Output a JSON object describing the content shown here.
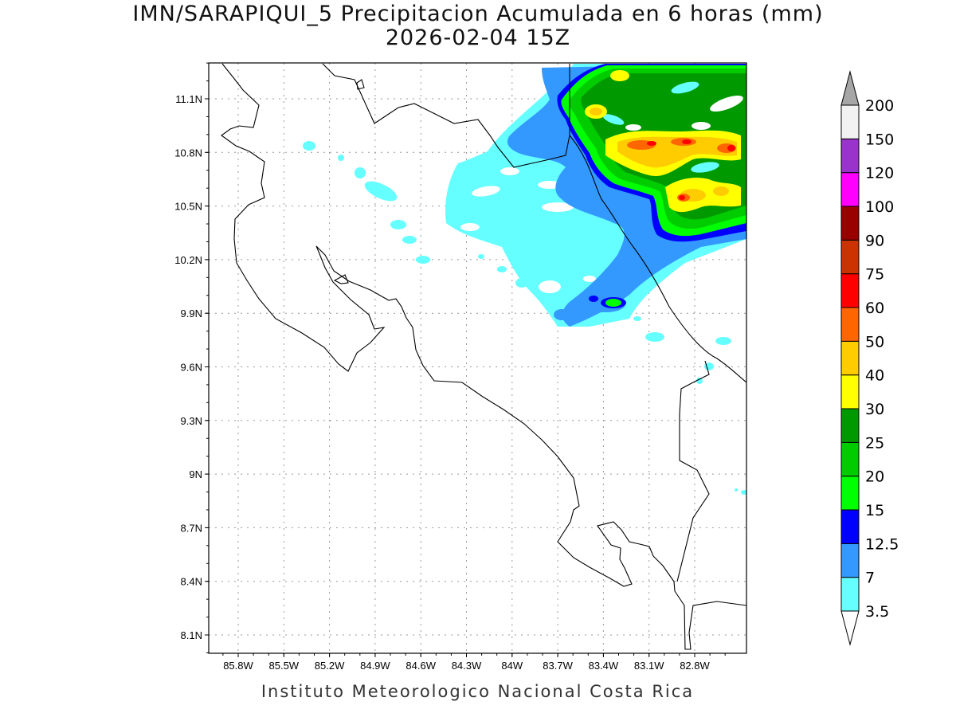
{
  "title": {
    "line1": "IMN/SARAPIQUI_5 Precipitacion Acumulada en 6 horas (mm)",
    "line2": "2026-02-04 15Z"
  },
  "credit": "Instituto Meteorologico Nacional Costa Rica",
  "map": {
    "lon_range": [
      -86.0,
      -82.6
    ],
    "lat_range": [
      8.0,
      11.3
    ],
    "lat_ticks": [
      "11.1N",
      "10.8N",
      "10.5N",
      "10.2N",
      "9.9N",
      "9.6N",
      "9.3N",
      "9N",
      "8.7N",
      "8.4N",
      "8.1N"
    ],
    "lon_ticks": [
      "85.8W",
      "85.5W",
      "85.2W",
      "84.9W",
      "84.6W",
      "84.3W",
      "84W",
      "83.7W",
      "83.4W",
      "83.1W",
      "82.8W"
    ],
    "grid": true
  },
  "colorbar": {
    "levels": [
      "3.5",
      "7",
      "12.5",
      "15",
      "20",
      "25",
      "30",
      "40",
      "50",
      "60",
      "75",
      "90",
      "100",
      "120",
      "150",
      "200"
    ],
    "colors": [
      "#66ffff",
      "#3399ff",
      "#0000ff",
      "#00ff00",
      "#00cc00",
      "#009900",
      "#ffff00",
      "#ffcc00",
      "#ff6600",
      "#ff0000",
      "#cc3300",
      "#990000",
      "#ff00ff",
      "#9933cc",
      "#f2f2f2",
      "#a6a6a6"
    ]
  }
}
